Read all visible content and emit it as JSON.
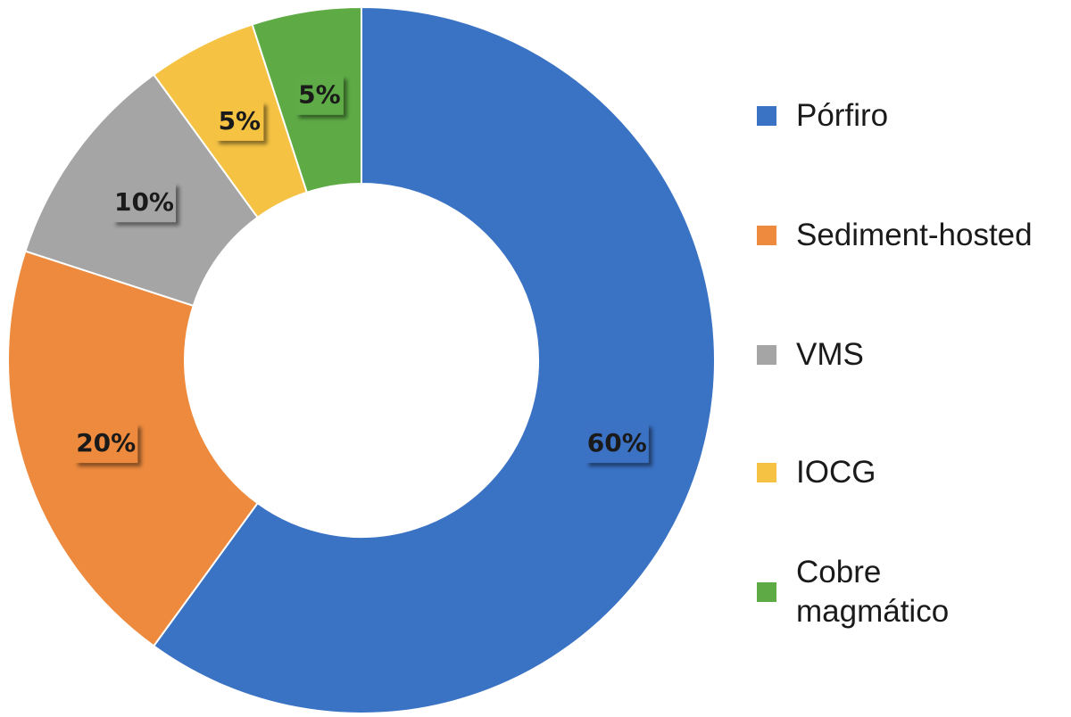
{
  "chart_data": {
    "type": "pie",
    "style": "donut",
    "categories": [
      "Pórfiro",
      "Sediment-hosted",
      "VMS",
      "IOCG",
      "Cobre magmático"
    ],
    "values": [
      60,
      20,
      10,
      5,
      5
    ],
    "labels": [
      "60%",
      "20%",
      "10%",
      "5%",
      "5%"
    ],
    "colors": [
      "#3a72c4",
      "#ed8a3e",
      "#a5a5a5",
      "#f5c243",
      "#5eab46"
    ],
    "legend_position": "right"
  },
  "legend": {
    "items": [
      {
        "label": "Pórfiro",
        "color": "#3a72c4"
      },
      {
        "label": "Sediment-hosted",
        "color": "#ed8a3e"
      },
      {
        "label": "VMS",
        "color": "#a5a5a5"
      },
      {
        "label": "IOCG",
        "color": "#f5c243"
      },
      {
        "label": "Cobre\nmagmático",
        "color": "#5eab46"
      }
    ]
  }
}
